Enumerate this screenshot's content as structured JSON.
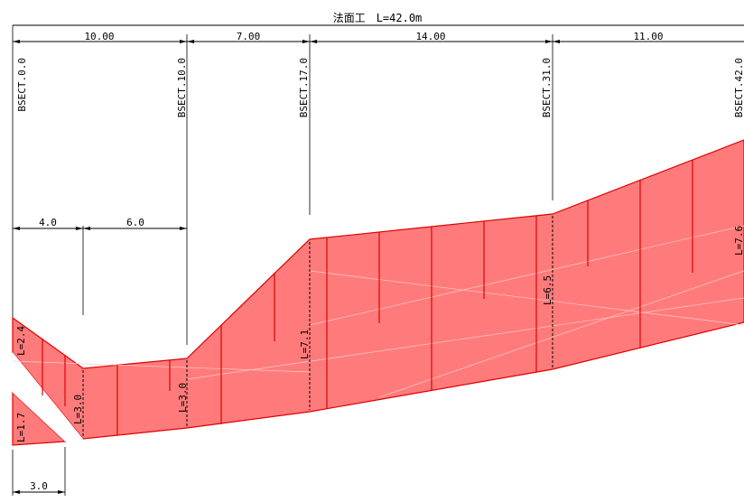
{
  "title": "法面工　L=42.0m",
  "segments": [
    "10.00",
    "7.00",
    "14.00",
    "11.00"
  ],
  "stations": [
    "BSECT.0.0",
    "BSECT.10.0",
    "BSECT.17.0",
    "BSECT.31.0",
    "BSECT.42.0"
  ],
  "sub_dims": [
    "4.0",
    "6.0"
  ],
  "bottom_dim": "3.0",
  "lengths": [
    "L=2.4",
    "L=1.7",
    "L=3.0",
    "L=3.0",
    "L=7.1",
    "L=6.5",
    "L=7.6"
  ],
  "colors": {
    "fill": "#ff7b7b",
    "stroke": "#e00000"
  }
}
